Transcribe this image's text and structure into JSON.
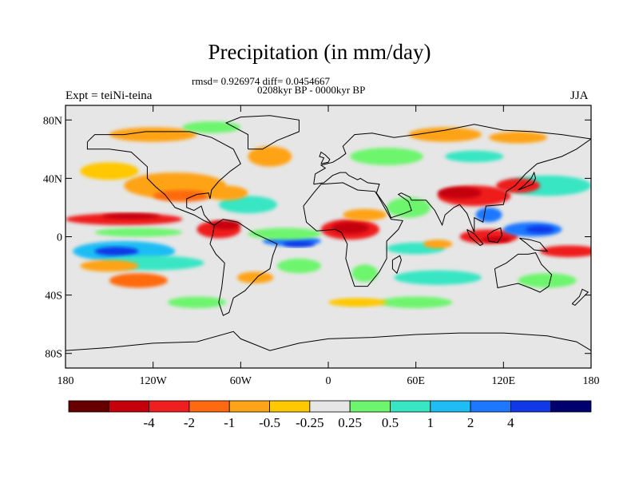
{
  "title": "Precipitation (in mm/day)",
  "stats_line": "rmsd= 0.926974 diff= 0.0454667",
  "period_line": "0208kyr BP - 0000kyr BP",
  "experiment": "Expt = teiNi-teina",
  "season": "JJA",
  "map": {
    "lat_ticks": [
      {
        "label": "80N",
        "value": 80
      },
      {
        "label": "40N",
        "value": 40
      },
      {
        "label": "0",
        "value": 0
      },
      {
        "label": "40S",
        "value": -40
      },
      {
        "label": "80S",
        "value": -80
      }
    ],
    "lon_ticks": [
      {
        "label": "180",
        "value": -180
      },
      {
        "label": "120W",
        "value": -120
      },
      {
        "label": "60W",
        "value": -60
      },
      {
        "label": "0",
        "value": 0
      },
      {
        "label": "60E",
        "value": 60
      },
      {
        "label": "120E",
        "value": 120
      },
      {
        "label": "180",
        "value": 180
      }
    ],
    "background_color": "#e6e6e6"
  },
  "colorbar": {
    "colors": [
      "#660000",
      "#c4000b",
      "#ef1f1f",
      "#ff6a10",
      "#ffa318",
      "#ffc800",
      "#e6e6e6",
      "#6ef56e",
      "#38e6c4",
      "#1ebdf5",
      "#1e78ff",
      "#1038e6",
      "#00006e"
    ],
    "labels": [
      "-4",
      "-2",
      "-1",
      "-0.5",
      "-0.25",
      "0.25",
      "0.5",
      "1",
      "2",
      "4"
    ]
  },
  "anomalies": [
    {
      "lon": -140,
      "lat": 12,
      "w": 80,
      "h": 8,
      "color": "#ef1f1f"
    },
    {
      "lon": -135,
      "lat": 14,
      "w": 40,
      "h": 4,
      "color": "#c4000b"
    },
    {
      "lon": -130,
      "lat": 3,
      "w": 60,
      "h": 6,
      "color": "#6ef56e"
    },
    {
      "lon": -140,
      "lat": -10,
      "w": 70,
      "h": 14,
      "color": "#1ebdf5"
    },
    {
      "lon": -145,
      "lat": -10,
      "w": 30,
      "h": 6,
      "color": "#1038e6"
    },
    {
      "lon": -120,
      "lat": -18,
      "w": 70,
      "h": 10,
      "color": "#38e6c4"
    },
    {
      "lon": -150,
      "lat": -20,
      "w": 40,
      "h": 8,
      "color": "#ffa318"
    },
    {
      "lon": -130,
      "lat": -30,
      "w": 40,
      "h": 10,
      "color": "#ff6a10"
    },
    {
      "lon": -105,
      "lat": 35,
      "w": 70,
      "h": 18,
      "color": "#ffa318"
    },
    {
      "lon": -100,
      "lat": 28,
      "w": 40,
      "h": 8,
      "color": "#ff6a10"
    },
    {
      "lon": -150,
      "lat": 45,
      "w": 40,
      "h": 12,
      "color": "#ffc800"
    },
    {
      "lon": -120,
      "lat": 70,
      "w": 60,
      "h": 10,
      "color": "#ffa318"
    },
    {
      "lon": -80,
      "lat": 75,
      "w": 40,
      "h": 8,
      "color": "#6ef56e"
    },
    {
      "lon": -75,
      "lat": 5,
      "w": 30,
      "h": 12,
      "color": "#ef1f1f"
    },
    {
      "lon": -70,
      "lat": 8,
      "w": 20,
      "h": 6,
      "color": "#c4000b"
    },
    {
      "lon": -55,
      "lat": 22,
      "w": 40,
      "h": 12,
      "color": "#38e6c4"
    },
    {
      "lon": -70,
      "lat": 30,
      "w": 30,
      "h": 10,
      "color": "#ffa318"
    },
    {
      "lon": -40,
      "lat": 55,
      "w": 30,
      "h": 14,
      "color": "#ffa318"
    },
    {
      "lon": -25,
      "lat": -3,
      "w": 40,
      "h": 7,
      "color": "#1e78ff"
    },
    {
      "lon": -20,
      "lat": -5,
      "w": 22,
      "h": 4,
      "color": "#1038e6"
    },
    {
      "lon": -30,
      "lat": 2,
      "w": 50,
      "h": 8,
      "color": "#6ef56e"
    },
    {
      "lon": -20,
      "lat": -20,
      "w": 30,
      "h": 10,
      "color": "#6ef56e"
    },
    {
      "lon": -50,
      "lat": -28,
      "w": 25,
      "h": 8,
      "color": "#ffa318"
    },
    {
      "lon": 15,
      "lat": 5,
      "w": 40,
      "h": 14,
      "color": "#ef1f1f"
    },
    {
      "lon": 15,
      "lat": 6,
      "w": 26,
      "h": 8,
      "color": "#c4000b"
    },
    {
      "lon": 25,
      "lat": 15,
      "w": 30,
      "h": 8,
      "color": "#ffa318"
    },
    {
      "lon": 25,
      "lat": -25,
      "w": 18,
      "h": 12,
      "color": "#6ef56e"
    },
    {
      "lon": 55,
      "lat": 20,
      "w": 30,
      "h": 14,
      "color": "#6ef56e"
    },
    {
      "lon": 60,
      "lat": -8,
      "w": 40,
      "h": 8,
      "color": "#38e6c4"
    },
    {
      "lon": 75,
      "lat": -5,
      "w": 20,
      "h": 6,
      "color": "#ffa318"
    },
    {
      "lon": 75,
      "lat": -28,
      "w": 60,
      "h": 10,
      "color": "#38e6c4"
    },
    {
      "lon": 100,
      "lat": 28,
      "w": 50,
      "h": 14,
      "color": "#ef1f1f"
    },
    {
      "lon": 90,
      "lat": 30,
      "w": 30,
      "h": 8,
      "color": "#c4000b"
    },
    {
      "lon": 110,
      "lat": 15,
      "w": 18,
      "h": 10,
      "color": "#1e78ff"
    },
    {
      "lon": 110,
      "lat": 0,
      "w": 40,
      "h": 10,
      "color": "#ef1f1f"
    },
    {
      "lon": 115,
      "lat": -2,
      "w": 20,
      "h": 4,
      "color": "#c4000b"
    },
    {
      "lon": 140,
      "lat": 5,
      "w": 40,
      "h": 10,
      "color": "#1e78ff"
    },
    {
      "lon": 145,
      "lat": 5,
      "w": 20,
      "h": 5,
      "color": "#1038e6"
    },
    {
      "lon": 150,
      "lat": 35,
      "w": 60,
      "h": 14,
      "color": "#38e6c4"
    },
    {
      "lon": 130,
      "lat": 35,
      "w": 30,
      "h": 10,
      "color": "#ef1f1f"
    },
    {
      "lon": 165,
      "lat": -10,
      "w": 40,
      "h": 8,
      "color": "#ef1f1f"
    },
    {
      "lon": 150,
      "lat": -30,
      "w": 40,
      "h": 10,
      "color": "#6ef56e"
    },
    {
      "lon": 80,
      "lat": 70,
      "w": 50,
      "h": 10,
      "color": "#ffa318"
    },
    {
      "lon": 40,
      "lat": 55,
      "w": 50,
      "h": 12,
      "color": "#6ef56e"
    },
    {
      "lon": 100,
      "lat": 55,
      "w": 40,
      "h": 8,
      "color": "#38e6c4"
    },
    {
      "lon": 130,
      "lat": 68,
      "w": 40,
      "h": 8,
      "color": "#ffa318"
    },
    {
      "lon": 60,
      "lat": -45,
      "w": 50,
      "h": 8,
      "color": "#6ef56e"
    },
    {
      "lon": -90,
      "lat": -45,
      "w": 40,
      "h": 8,
      "color": "#6ef56e"
    },
    {
      "lon": 20,
      "lat": -45,
      "w": 40,
      "h": 6,
      "color": "#ffc800"
    }
  ]
}
